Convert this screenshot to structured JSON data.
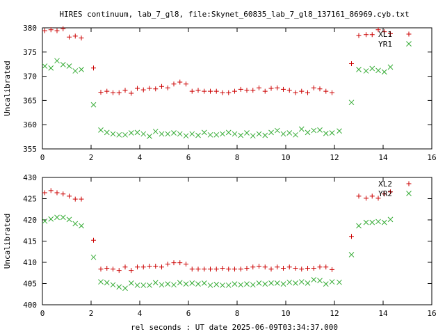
{
  "chart_data": {
    "title": "HIRES continuum, lab_7_gl8, file:Skynet_60835_lab_7_gl8_137161_86969.cyb.txt",
    "xlabel": "rel seconds : UT date 2025-06-09T03:34:37.000",
    "colors": {
      "XL": "#cc0000",
      "YR": "#33aa33"
    },
    "charts": [
      {
        "type": "scatter",
        "ylabel": "Uncalibrated",
        "xlim": [
          0,
          16
        ],
        "ylim": [
          355,
          380
        ],
        "xticks": [
          0,
          2,
          4,
          6,
          8,
          10,
          12,
          14,
          16
        ],
        "yticks": [
          355,
          360,
          365,
          370,
          375,
          380
        ],
        "legend_position": "top-right",
        "series": [
          {
            "name": "XL1",
            "marker": "plus",
            "color_key": "XL",
            "points": [
              [
                0.1,
                379.4
              ],
              [
                0.35,
                379.6
              ],
              [
                0.6,
                379.4
              ],
              [
                0.85,
                379.8
              ],
              [
                1.1,
                378.1
              ],
              [
                1.35,
                378.3
              ],
              [
                1.6,
                377.9
              ],
              [
                2.1,
                371.7
              ],
              [
                2.4,
                366.7
              ],
              [
                2.65,
                366.9
              ],
              [
                2.9,
                366.6
              ],
              [
                3.15,
                366.6
              ],
              [
                3.4,
                367.1
              ],
              [
                3.65,
                366.5
              ],
              [
                3.9,
                367.5
              ],
              [
                4.15,
                367.2
              ],
              [
                4.4,
                367.5
              ],
              [
                4.65,
                367.4
              ],
              [
                4.9,
                367.9
              ],
              [
                5.15,
                367.6
              ],
              [
                5.4,
                368.4
              ],
              [
                5.65,
                368.8
              ],
              [
                5.9,
                368.4
              ],
              [
                6.15,
                366.9
              ],
              [
                6.4,
                367.1
              ],
              [
                6.65,
                366.9
              ],
              [
                6.9,
                366.9
              ],
              [
                7.15,
                366.9
              ],
              [
                7.4,
                366.6
              ],
              [
                7.65,
                366.6
              ],
              [
                7.9,
                366.9
              ],
              [
                8.15,
                367.3
              ],
              [
                8.4,
                367.1
              ],
              [
                8.65,
                367.1
              ],
              [
                8.9,
                367.6
              ],
              [
                9.15,
                366.9
              ],
              [
                9.4,
                367.5
              ],
              [
                9.65,
                367.6
              ],
              [
                9.9,
                367.3
              ],
              [
                10.15,
                367.1
              ],
              [
                10.4,
                366.6
              ],
              [
                10.65,
                366.9
              ],
              [
                10.9,
                366.6
              ],
              [
                11.15,
                367.6
              ],
              [
                11.4,
                367.4
              ],
              [
                11.65,
                366.9
              ],
              [
                11.9,
                366.6
              ],
              [
                12.7,
                372.6
              ],
              [
                13.0,
                378.4
              ],
              [
                13.3,
                378.6
              ],
              [
                13.55,
                378.6
              ],
              [
                13.8,
                379.6
              ],
              [
                14.05,
                379.2
              ],
              [
                14.3,
                378.8
              ]
            ]
          },
          {
            "name": "YR1",
            "marker": "cross",
            "color_key": "YR",
            "points": [
              [
                0.1,
                372.1
              ],
              [
                0.35,
                371.7
              ],
              [
                0.6,
                373.2
              ],
              [
                0.85,
                372.4
              ],
              [
                1.1,
                372.1
              ],
              [
                1.35,
                371.1
              ],
              [
                1.6,
                371.4
              ],
              [
                2.1,
                364.1
              ],
              [
                2.4,
                358.9
              ],
              [
                2.65,
                358.4
              ],
              [
                2.9,
                358.1
              ],
              [
                3.15,
                357.9
              ],
              [
                3.4,
                357.9
              ],
              [
                3.65,
                358.3
              ],
              [
                3.9,
                358.4
              ],
              [
                4.15,
                358.1
              ],
              [
                4.4,
                357.6
              ],
              [
                4.65,
                358.6
              ],
              [
                4.9,
                358.1
              ],
              [
                5.15,
                358.1
              ],
              [
                5.4,
                358.3
              ],
              [
                5.65,
                358.1
              ],
              [
                5.9,
                357.7
              ],
              [
                6.15,
                358.1
              ],
              [
                6.4,
                357.8
              ],
              [
                6.65,
                358.4
              ],
              [
                6.9,
                357.9
              ],
              [
                7.15,
                357.9
              ],
              [
                7.4,
                358.1
              ],
              [
                7.65,
                358.4
              ],
              [
                7.9,
                358.1
              ],
              [
                8.15,
                357.8
              ],
              [
                8.4,
                358.3
              ],
              [
                8.65,
                357.7
              ],
              [
                8.9,
                358.1
              ],
              [
                9.15,
                357.8
              ],
              [
                9.4,
                358.4
              ],
              [
                9.65,
                358.8
              ],
              [
                9.9,
                358.1
              ],
              [
                10.15,
                358.3
              ],
              [
                10.4,
                357.9
              ],
              [
                10.65,
                359.1
              ],
              [
                10.9,
                358.4
              ],
              [
                11.15,
                358.8
              ],
              [
                11.4,
                358.9
              ],
              [
                11.65,
                358.2
              ],
              [
                11.9,
                358.3
              ],
              [
                12.2,
                358.7
              ],
              [
                12.7,
                364.6
              ],
              [
                13.0,
                371.4
              ],
              [
                13.3,
                371.1
              ],
              [
                13.55,
                371.6
              ],
              [
                13.8,
                371.2
              ],
              [
                14.05,
                370.9
              ],
              [
                14.3,
                371.9
              ]
            ]
          }
        ]
      },
      {
        "type": "scatter",
        "ylabel": "Uncalibrated",
        "xlim": [
          0,
          16
        ],
        "ylim": [
          400,
          430
        ],
        "xticks": [
          0,
          2,
          4,
          6,
          8,
          10,
          12,
          14,
          16
        ],
        "yticks": [
          400,
          405,
          410,
          415,
          420,
          425,
          430
        ],
        "legend_position": "top-right",
        "series": [
          {
            "name": "XL2",
            "marker": "plus",
            "color_key": "XL",
            "points": [
              [
                0.1,
                426.4
              ],
              [
                0.35,
                426.9
              ],
              [
                0.6,
                426.4
              ],
              [
                0.85,
                426.1
              ],
              [
                1.1,
                425.6
              ],
              [
                1.35,
                424.9
              ],
              [
                1.6,
                424.9
              ],
              [
                2.1,
                415.2
              ],
              [
                2.4,
                408.4
              ],
              [
                2.65,
                408.6
              ],
              [
                2.9,
                408.4
              ],
              [
                3.15,
                408.1
              ],
              [
                3.4,
                408.9
              ],
              [
                3.65,
                408.1
              ],
              [
                3.9,
                408.9
              ],
              [
                4.15,
                408.9
              ],
              [
                4.4,
                409.1
              ],
              [
                4.65,
                409.1
              ],
              [
                4.9,
                408.9
              ],
              [
                5.15,
                409.6
              ],
              [
                5.4,
                409.9
              ],
              [
                5.65,
                409.9
              ],
              [
                5.9,
                409.6
              ],
              [
                6.15,
                408.4
              ],
              [
                6.4,
                408.4
              ],
              [
                6.65,
                408.4
              ],
              [
                6.9,
                408.4
              ],
              [
                7.15,
                408.4
              ],
              [
                7.4,
                408.6
              ],
              [
                7.65,
                408.4
              ],
              [
                7.9,
                408.4
              ],
              [
                8.15,
                408.4
              ],
              [
                8.4,
                408.6
              ],
              [
                8.65,
                408.9
              ],
              [
                8.9,
                409.1
              ],
              [
                9.15,
                408.9
              ],
              [
                9.4,
                408.4
              ],
              [
                9.65,
                408.9
              ],
              [
                9.9,
                408.6
              ],
              [
                10.15,
                408.9
              ],
              [
                10.4,
                408.6
              ],
              [
                10.65,
                408.4
              ],
              [
                10.9,
                408.6
              ],
              [
                11.15,
                408.6
              ],
              [
                11.4,
                408.9
              ],
              [
                11.65,
                408.9
              ],
              [
                11.9,
                408.3
              ],
              [
                12.7,
                416.1
              ],
              [
                13.0,
                425.6
              ],
              [
                13.3,
                425.1
              ],
              [
                13.55,
                425.6
              ],
              [
                13.8,
                425.1
              ],
              [
                14.05,
                426.1
              ],
              [
                14.3,
                426.6
              ]
            ]
          },
          {
            "name": "YR2",
            "marker": "cross",
            "color_key": "YR",
            "points": [
              [
                0.1,
                419.7
              ],
              [
                0.35,
                420.2
              ],
              [
                0.6,
                420.6
              ],
              [
                0.85,
                420.6
              ],
              [
                1.1,
                420.1
              ],
              [
                1.35,
                419.1
              ],
              [
                1.6,
                418.6
              ],
              [
                2.1,
                411.2
              ],
              [
                2.4,
                405.4
              ],
              [
                2.65,
                405.2
              ],
              [
                2.9,
                404.7
              ],
              [
                3.15,
                404.2
              ],
              [
                3.4,
                403.9
              ],
              [
                3.65,
                405.1
              ],
              [
                3.9,
                404.6
              ],
              [
                4.15,
                404.6
              ],
              [
                4.4,
                404.6
              ],
              [
                4.65,
                405.2
              ],
              [
                4.9,
                404.7
              ],
              [
                5.15,
                404.9
              ],
              [
                5.4,
                404.7
              ],
              [
                5.65,
                405.2
              ],
              [
                5.9,
                404.9
              ],
              [
                6.15,
                405.1
              ],
              [
                6.4,
                404.9
              ],
              [
                6.65,
                405.1
              ],
              [
                6.9,
                404.6
              ],
              [
                7.15,
                404.8
              ],
              [
                7.4,
                404.6
              ],
              [
                7.65,
                404.6
              ],
              [
                7.9,
                404.9
              ],
              [
                8.15,
                404.7
              ],
              [
                8.4,
                404.9
              ],
              [
                8.65,
                404.7
              ],
              [
                8.9,
                405.1
              ],
              [
                9.15,
                404.9
              ],
              [
                9.4,
                405.1
              ],
              [
                9.65,
                405.1
              ],
              [
                9.9,
                404.9
              ],
              [
                10.15,
                405.3
              ],
              [
                10.4,
                405.1
              ],
              [
                10.65,
                405.4
              ],
              [
                10.9,
                405.1
              ],
              [
                11.15,
                405.9
              ],
              [
                11.4,
                405.7
              ],
              [
                11.65,
                404.9
              ],
              [
                11.9,
                405.4
              ],
              [
                12.2,
                405.3
              ],
              [
                12.7,
                411.8
              ],
              [
                13.0,
                418.6
              ],
              [
                13.3,
                419.4
              ],
              [
                13.55,
                419.4
              ],
              [
                13.8,
                419.6
              ],
              [
                14.05,
                419.4
              ],
              [
                14.3,
                420.1
              ]
            ]
          }
        ]
      }
    ]
  }
}
